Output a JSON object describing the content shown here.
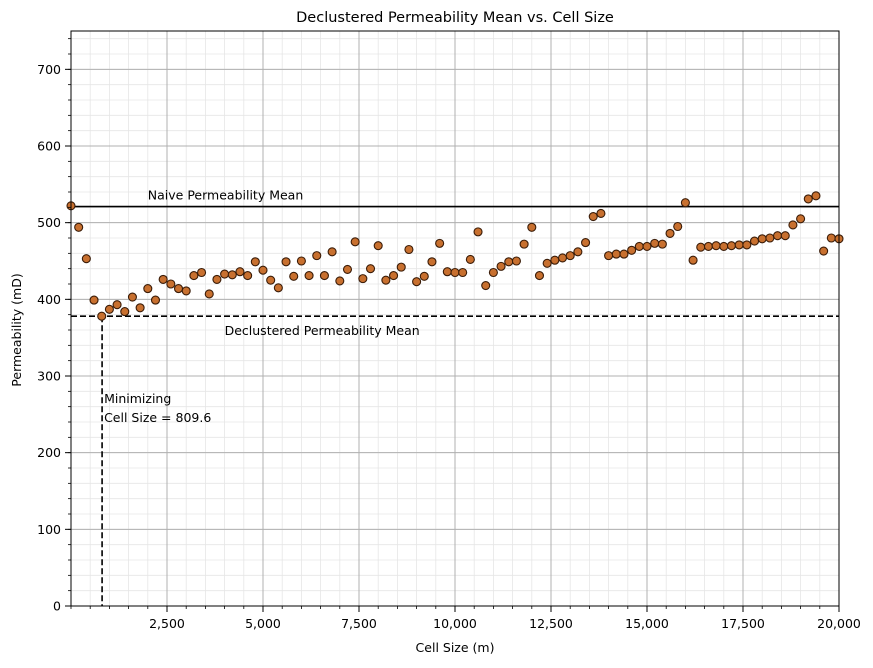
{
  "chart_data": {
    "type": "scatter",
    "title": "Declustered Permeability Mean vs. Cell Size",
    "xlabel": "Cell Size (m)",
    "ylabel": "Permeability (mD)",
    "xlim": [
      0,
      20000
    ],
    "ylim": [
      0,
      750
    ],
    "xticks": [
      2500,
      5000,
      7500,
      10000,
      12500,
      15000,
      17500,
      20000
    ],
    "xtick_labels": [
      "2,500",
      "5,000",
      "7,500",
      "10,000",
      "12,500",
      "15,000",
      "17,500",
      "20,000"
    ],
    "yticks": [
      0,
      100,
      200,
      300,
      400,
      500,
      600,
      700
    ],
    "ytick_labels": [
      "0",
      "100",
      "200",
      "300",
      "400",
      "500",
      "600",
      "700"
    ],
    "grid": true,
    "marker_color": "#C8702F",
    "marker_edge": "#3a1c08",
    "series": [
      {
        "x": [
          0,
          200,
          400,
          600,
          800,
          1000,
          1200,
          1400,
          1600,
          1800,
          2000,
          2200,
          2400,
          2600,
          2800,
          3000,
          3200,
          3400,
          3600,
          3800,
          4000,
          4200,
          4400,
          4600,
          4800,
          5000,
          5200,
          5400,
          5600,
          5800,
          6000,
          6200,
          6400,
          6600,
          6800,
          7000,
          7200,
          7400,
          7600,
          7800,
          8000,
          8200,
          8400,
          8600,
          8800,
          9000,
          9200,
          9400,
          9600,
          9800,
          10000,
          10200,
          10400,
          10600,
          10800,
          11000,
          11200,
          11400,
          11600,
          11800,
          12000,
          12200,
          12400,
          12600,
          12800,
          13000,
          13200,
          13400,
          13600,
          13800,
          14000,
          14200,
          14400,
          14600,
          14800,
          15000,
          15200,
          15400,
          15600,
          15800,
          16000,
          16200,
          16400,
          16600,
          16800,
          17000,
          17200,
          17400,
          17600,
          17800,
          18000,
          18200,
          18400,
          18600,
          18800,
          19000,
          19200,
          19400,
          19600,
          19800,
          20000
        ],
        "y": [
          522,
          494,
          453,
          399,
          378,
          387,
          393,
          384,
          403,
          389,
          414,
          399,
          426,
          420,
          414,
          411,
          431,
          435,
          407,
          426,
          433,
          432,
          436,
          431,
          449,
          438,
          425,
          415,
          449,
          430,
          450,
          431,
          457,
          431,
          462,
          424,
          439,
          475,
          427,
          440,
          470,
          425,
          431,
          442,
          465,
          423,
          430,
          449,
          473,
          436,
          435,
          435,
          452,
          488,
          418,
          435,
          443,
          449,
          450,
          472,
          494,
          431,
          447,
          451,
          454,
          457,
          462,
          474,
          508,
          512,
          457,
          459,
          459,
          464,
          469,
          469,
          473,
          472,
          486,
          495,
          526,
          451,
          468,
          469,
          470,
          469,
          470,
          471,
          471,
          476,
          479,
          480,
          483,
          483,
          497,
          505,
          531,
          535,
          463,
          480,
          479
        ]
      }
    ],
    "reference_lines": {
      "naive_mean": 521,
      "declustered_mean": 378,
      "minimizing_cell_size": 809.6
    },
    "annotations": {
      "naive_label": "Naive Permeability Mean",
      "declustered_label": "Declustered Permeability Mean",
      "minimizing_line1": "Minimizing",
      "minimizing_line2": "Cell Size = 809.6"
    }
  }
}
